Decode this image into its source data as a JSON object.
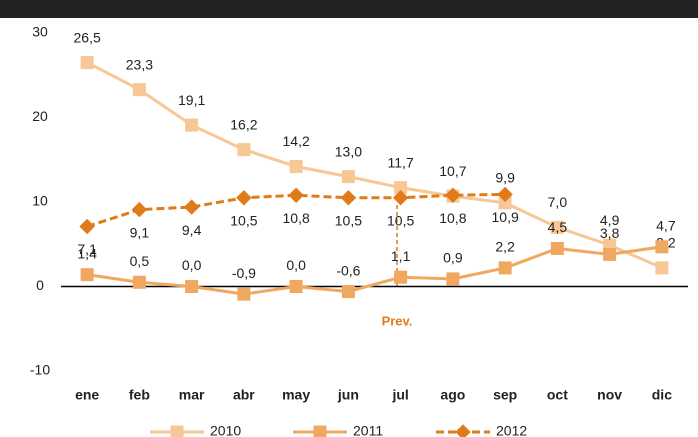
{
  "chart_data": {
    "type": "line",
    "categories": [
      "ene",
      "feb",
      "mar",
      "abr",
      "may",
      "jun",
      "jul",
      "ago",
      "sep",
      "oct",
      "nov",
      "dic"
    ],
    "series": [
      {
        "name": "2010",
        "color": "#f7c796",
        "marker": "square",
        "dashed": false,
        "values": [
          26.5,
          23.3,
          19.1,
          16.2,
          14.2,
          13.0,
          11.7,
          10.7,
          9.9,
          7.0,
          4.9,
          2.2
        ],
        "value_labels": [
          "26,5",
          "23,3",
          "19,1",
          "16,2",
          "14,2",
          "13,0",
          "11,7",
          "10,7",
          "9,9",
          "7,0",
          "4,9",
          "2,2"
        ]
      },
      {
        "name": "2011",
        "color": "#f0a860",
        "marker": "square",
        "dashed": false,
        "values": [
          1.4,
          0.5,
          0.0,
          -0.9,
          0.0,
          -0.6,
          1.1,
          0.9,
          2.2,
          4.5,
          3.8,
          4.7
        ],
        "value_labels": [
          "1,4",
          "0,5",
          "0,0",
          "-0,9",
          "0,0",
          "-0,6",
          "1,1",
          "0,9",
          "2,2",
          "4,5",
          "3,8",
          "4,7"
        ]
      },
      {
        "name": "2012",
        "color": "#e07b1a",
        "marker": "diamond",
        "dashed": true,
        "values": [
          7.1,
          9.1,
          9.4,
          10.5,
          10.8,
          10.5,
          10.5,
          10.8,
          10.9,
          null,
          null,
          null
        ],
        "value_labels": [
          "7,1",
          "9,1",
          "9,4",
          "10,5",
          "10,8",
          "10,5",
          "10,5",
          "10,8",
          "10,9",
          null,
          null,
          null
        ]
      }
    ],
    "ylim": [
      -10,
      30
    ],
    "yticks": [
      -10,
      0,
      10,
      20,
      30
    ],
    "annotation": "Prev."
  }
}
